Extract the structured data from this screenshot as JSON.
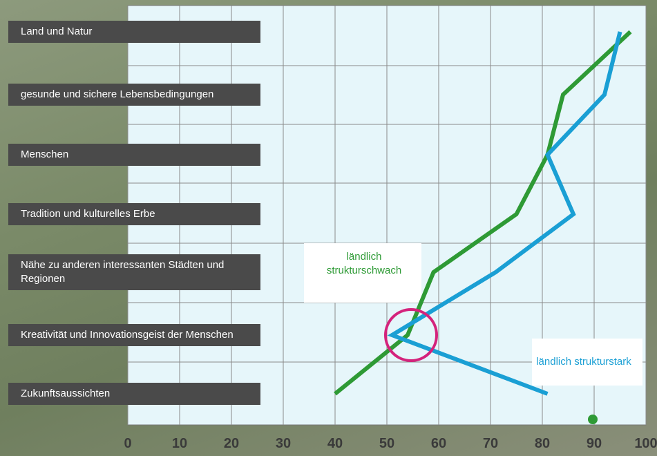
{
  "chart_data": {
    "type": "line",
    "categories": [
      "Land und Natur",
      "gesunde und sichere Lebensbedingungen",
      "Menschen",
      "Tradition und kulturelles Erbe",
      "Nähe zu anderen interessanten Städten und Regionen",
      "Kreativität und Innovationsgeist der Menschen",
      "Zukunftsaussichten"
    ],
    "series": [
      {
        "name": "ländlich strukturschwach",
        "color": "#2e9a35",
        "values": [
          97,
          84,
          81,
          75,
          59,
          54,
          40
        ]
      },
      {
        "name": "ländlich strukturstark",
        "color": "#1a9fd4",
        "values": [
          95,
          92,
          81,
          86,
          71,
          51,
          81
        ]
      }
    ],
    "xlim": [
      0,
      100
    ],
    "xticks": [
      0,
      10,
      20,
      30,
      40,
      50,
      60,
      70,
      80,
      90,
      100
    ],
    "grid": true
  }
}
